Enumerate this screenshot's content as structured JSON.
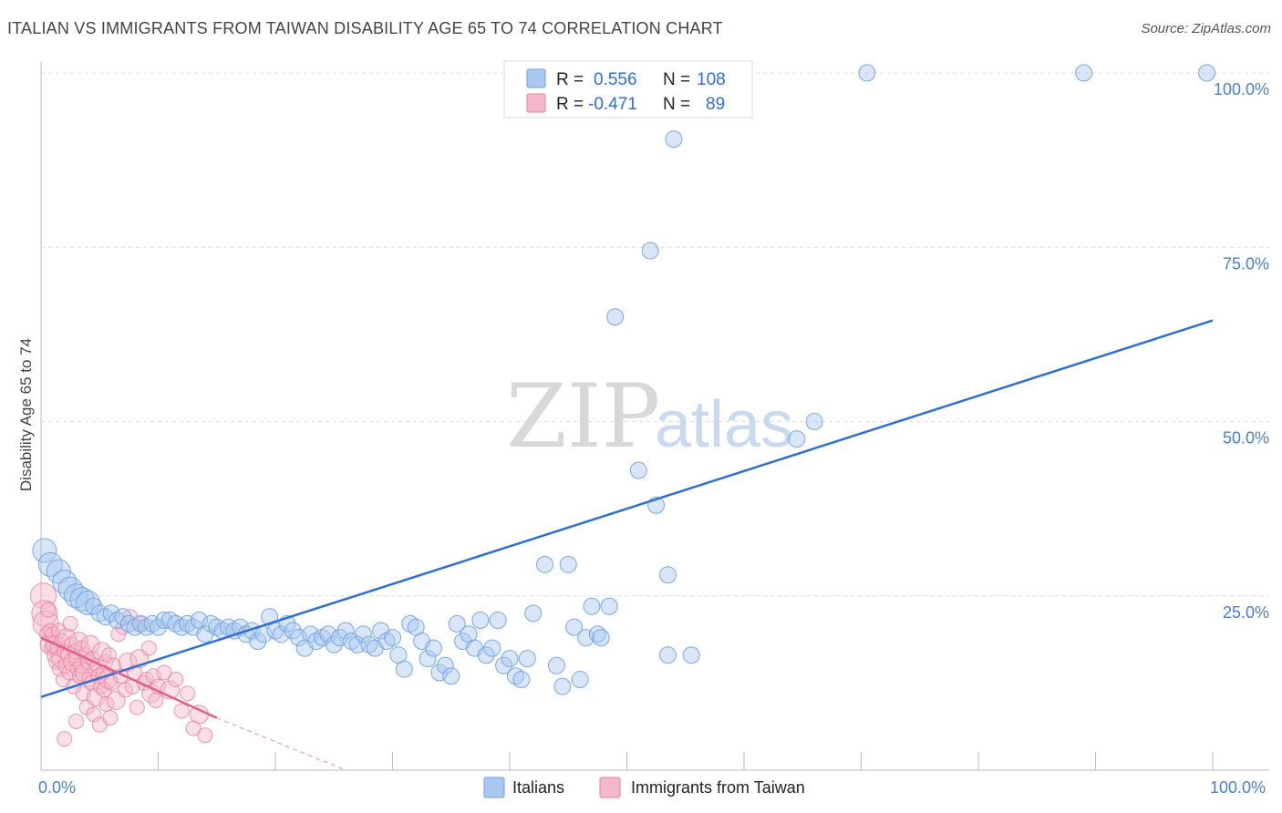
{
  "header": {
    "title": "ITALIAN VS IMMIGRANTS FROM TAIWAN DISABILITY AGE 65 TO 74 CORRELATION CHART",
    "source": "Source: ZipAtlas.com"
  },
  "watermark": {
    "zip": "ZIP",
    "atlas": "atlas"
  },
  "legend": {
    "rows": [
      {
        "r_label": "R =",
        "r_value": "0.556",
        "n_label": "N =",
        "n_value": "108",
        "color": "#a8c8f0"
      },
      {
        "r_label": "R =",
        "r_value": "-0.471",
        "n_label": "N =",
        "n_value": "89",
        "color": "#f5b8c8"
      }
    ]
  },
  "bottom_legend": {
    "italians": "Italians",
    "taiwan": "Immigrants from Taiwan"
  },
  "axes": {
    "y_title": "Disability Age 65 to 74",
    "x_min_label": "0.0%",
    "x_max_label": "100.0%",
    "y_ticks": [
      "25.0%",
      "50.0%",
      "75.0%",
      "100.0%"
    ]
  },
  "colors": {
    "blue_fill": "#a8c8f0",
    "blue_stroke": "#6f9ee0",
    "blue_line": "#2f6fcf",
    "pink_fill": "#f5b8c8",
    "pink_stroke": "#e87fa0",
    "pink_line": "#e0608a"
  },
  "chart_data": {
    "type": "scatter",
    "xlim": [
      0,
      100
    ],
    "ylim": [
      0,
      100
    ],
    "xlabel": "",
    "ylabel": "Disability Age 65 to 74",
    "grid": true,
    "series": [
      {
        "name": "Italians",
        "points": [
          [
            0.3,
            31.5
          ],
          [
            0.8,
            29.5
          ],
          [
            1.5,
            28.5
          ],
          [
            2.0,
            27.0
          ],
          [
            2.5,
            26.0
          ],
          [
            3.0,
            25.0
          ],
          [
            3.5,
            24.5
          ],
          [
            4.0,
            24.0
          ],
          [
            4.5,
            23.5
          ],
          [
            5.0,
            22.5
          ],
          [
            5.5,
            22.0
          ],
          [
            6.0,
            22.5
          ],
          [
            6.5,
            21.5
          ],
          [
            7.0,
            22.0
          ],
          [
            7.5,
            21.0
          ],
          [
            8.0,
            20.5
          ],
          [
            8.5,
            21.0
          ],
          [
            9.0,
            20.5
          ],
          [
            9.5,
            21.0
          ],
          [
            10.0,
            20.5
          ],
          [
            10.5,
            21.5
          ],
          [
            11.0,
            21.5
          ],
          [
            11.5,
            21.0
          ],
          [
            12.0,
            20.5
          ],
          [
            12.5,
            21.0
          ],
          [
            13.0,
            20.5
          ],
          [
            13.5,
            21.5
          ],
          [
            14.0,
            19.5
          ],
          [
            14.5,
            21.0
          ],
          [
            15.0,
            20.5
          ],
          [
            15.5,
            20.0
          ],
          [
            16.0,
            20.5
          ],
          [
            16.5,
            20.0
          ],
          [
            17.0,
            20.5
          ],
          [
            17.5,
            19.5
          ],
          [
            18.0,
            20.0
          ],
          [
            18.5,
            18.5
          ],
          [
            19.0,
            19.5
          ],
          [
            19.5,
            22.0
          ],
          [
            20.0,
            20.0
          ],
          [
            20.5,
            19.5
          ],
          [
            21.0,
            21.0
          ],
          [
            21.5,
            20.0
          ],
          [
            22.0,
            19.0
          ],
          [
            22.5,
            17.5
          ],
          [
            23.0,
            19.5
          ],
          [
            23.5,
            18.5
          ],
          [
            24.0,
            19.0
          ],
          [
            24.5,
            19.5
          ],
          [
            25.0,
            18.0
          ],
          [
            25.5,
            19.0
          ],
          [
            26.0,
            20.0
          ],
          [
            26.5,
            18.5
          ],
          [
            27.0,
            18.0
          ],
          [
            27.5,
            19.5
          ],
          [
            28.0,
            18.0
          ],
          [
            28.5,
            17.5
          ],
          [
            29.0,
            20.0
          ],
          [
            29.5,
            18.5
          ],
          [
            30.0,
            19.0
          ],
          [
            30.5,
            16.5
          ],
          [
            31.0,
            14.5
          ],
          [
            31.5,
            21.0
          ],
          [
            32.0,
            20.5
          ],
          [
            32.5,
            18.5
          ],
          [
            33.0,
            16.0
          ],
          [
            33.5,
            17.5
          ],
          [
            34.0,
            14.0
          ],
          [
            34.5,
            15.0
          ],
          [
            35.0,
            13.5
          ],
          [
            35.5,
            21.0
          ],
          [
            36.0,
            18.5
          ],
          [
            36.5,
            19.5
          ],
          [
            37.0,
            17.5
          ],
          [
            37.5,
            21.5
          ],
          [
            38.0,
            16.5
          ],
          [
            38.5,
            17.5
          ],
          [
            39.0,
            21.5
          ],
          [
            39.5,
            15.0
          ],
          [
            40.0,
            16.0
          ],
          [
            40.5,
            13.5
          ],
          [
            41.0,
            13.0
          ],
          [
            41.5,
            16.0
          ],
          [
            42.0,
            22.5
          ],
          [
            43.0,
            29.5
          ],
          [
            44.0,
            15.0
          ],
          [
            44.5,
            12.0
          ],
          [
            45.0,
            29.5
          ],
          [
            45.5,
            20.5
          ],
          [
            46.0,
            13.0
          ],
          [
            46.5,
            19.0
          ],
          [
            47.0,
            23.5
          ],
          [
            47.5,
            19.5
          ],
          [
            47.8,
            19.0
          ],
          [
            48.5,
            23.5
          ],
          [
            49.0,
            65.0
          ],
          [
            51.0,
            43.0
          ],
          [
            52.0,
            74.5
          ],
          [
            52.5,
            38.0
          ],
          [
            53.5,
            28.0
          ],
          [
            53.5,
            16.5
          ],
          [
            54.0,
            90.5
          ],
          [
            55.5,
            16.5
          ],
          [
            64.5,
            47.5
          ],
          [
            66.0,
            50.0
          ],
          [
            70.5,
            100.0
          ],
          [
            89.0,
            100.0
          ],
          [
            99.5,
            100.0
          ]
        ]
      },
      {
        "name": "Immigrants from Taiwan",
        "points": [
          [
            0.2,
            25.0
          ],
          [
            0.3,
            22.5
          ],
          [
            0.4,
            21.0
          ],
          [
            0.5,
            19.5
          ],
          [
            0.6,
            23.0
          ],
          [
            0.7,
            18.0
          ],
          [
            0.8,
            20.0
          ],
          [
            0.9,
            17.5
          ],
          [
            1.0,
            19.5
          ],
          [
            1.1,
            16.5
          ],
          [
            1.2,
            18.0
          ],
          [
            1.3,
            15.5
          ],
          [
            1.4,
            17.5
          ],
          [
            1.5,
            20.0
          ],
          [
            1.6,
            14.5
          ],
          [
            1.7,
            16.0
          ],
          [
            1.8,
            18.5
          ],
          [
            1.9,
            13.0
          ],
          [
            2.0,
            17.0
          ],
          [
            2.1,
            15.0
          ],
          [
            2.2,
            19.0
          ],
          [
            2.3,
            16.5
          ],
          [
            2.4,
            14.0
          ],
          [
            2.5,
            21.0
          ],
          [
            2.6,
            18.0
          ],
          [
            2.7,
            15.5
          ],
          [
            2.8,
            12.0
          ],
          [
            2.9,
            17.0
          ],
          [
            3.0,
            16.0
          ],
          [
            3.1,
            14.5
          ],
          [
            3.2,
            18.5
          ],
          [
            3.3,
            13.5
          ],
          [
            3.4,
            15.0
          ],
          [
            3.5,
            17.5
          ],
          [
            3.6,
            11.0
          ],
          [
            3.7,
            14.0
          ],
          [
            3.8,
            16.5
          ],
          [
            3.9,
            9.0
          ],
          [
            4.0,
            15.5
          ],
          [
            4.1,
            13.0
          ],
          [
            4.2,
            18.0
          ],
          [
            4.3,
            12.5
          ],
          [
            4.4,
            16.0
          ],
          [
            4.5,
            8.0
          ],
          [
            4.6,
            14.5
          ],
          [
            4.7,
            10.5
          ],
          [
            4.8,
            15.0
          ],
          [
            4.9,
            13.5
          ],
          [
            5.0,
            6.5
          ],
          [
            5.1,
            12.0
          ],
          [
            5.2,
            17.0
          ],
          [
            5.3,
            14.0
          ],
          [
            5.4,
            11.5
          ],
          [
            5.5,
            15.5
          ],
          [
            5.6,
            9.5
          ],
          [
            5.7,
            13.0
          ],
          [
            5.8,
            16.5
          ],
          [
            5.9,
            7.5
          ],
          [
            6.0,
            12.5
          ],
          [
            6.2,
            15.0
          ],
          [
            6.4,
            10.0
          ],
          [
            6.6,
            19.5
          ],
          [
            6.8,
            13.5
          ],
          [
            7.0,
            20.5
          ],
          [
            7.2,
            11.5
          ],
          [
            7.4,
            15.5
          ],
          [
            7.6,
            22.0
          ],
          [
            7.8,
            12.0
          ],
          [
            8.0,
            14.0
          ],
          [
            8.2,
            9.0
          ],
          [
            8.4,
            16.0
          ],
          [
            8.6,
            21.0
          ],
          [
            8.8,
            12.5
          ],
          [
            9.0,
            13.0
          ],
          [
            9.2,
            17.5
          ],
          [
            9.4,
            11.0
          ],
          [
            9.6,
            13.5
          ],
          [
            9.8,
            10.0
          ],
          [
            10.0,
            12.0
          ],
          [
            10.5,
            14.0
          ],
          [
            11.0,
            11.5
          ],
          [
            11.5,
            13.0
          ],
          [
            12.0,
            8.5
          ],
          [
            12.5,
            11.0
          ],
          [
            13.0,
            6.0
          ],
          [
            13.5,
            8.0
          ],
          [
            14.0,
            5.0
          ],
          [
            2.0,
            4.5
          ],
          [
            3.0,
            7.0
          ]
        ]
      }
    ],
    "trendlines": [
      {
        "series": "Italians",
        "x": [
          0,
          100
        ],
        "y": [
          10.5,
          64.5
        ]
      },
      {
        "series": "Immigrants from Taiwan",
        "x": [
          0,
          15
        ],
        "y": [
          19.0,
          7.5
        ],
        "dashed_to": [
          26,
          0
        ]
      }
    ]
  }
}
